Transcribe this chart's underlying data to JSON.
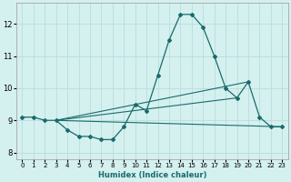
{
  "xlabel": "Humidex (Indice chaleur)",
  "ylabel": "",
  "background_color": "#d4f0ef",
  "grid_color": "#b8dede",
  "line_color": "#1a6b6b",
  "xlim": [
    -0.5,
    23.5
  ],
  "ylim": [
    7.8,
    12.65
  ],
  "yticks": [
    8,
    9,
    10,
    11,
    12
  ],
  "xticks": [
    0,
    1,
    2,
    3,
    4,
    5,
    6,
    7,
    8,
    9,
    10,
    11,
    12,
    13,
    14,
    15,
    16,
    17,
    18,
    19,
    20,
    21,
    22,
    23
  ],
  "line1_x": [
    0,
    1,
    2,
    3,
    4,
    5,
    6,
    7,
    8,
    9,
    10,
    11,
    12,
    13,
    14,
    15,
    16,
    17,
    18,
    19,
    20,
    21,
    22,
    23
  ],
  "line1_y": [
    9.1,
    9.1,
    9.0,
    9.0,
    8.7,
    8.5,
    8.5,
    8.4,
    8.4,
    8.8,
    9.5,
    9.3,
    10.4,
    11.5,
    12.3,
    12.3,
    11.9,
    11.0,
    10.0,
    9.7,
    10.2,
    9.1,
    8.8,
    8.8
  ],
  "line2_x": [
    3,
    23
  ],
  "line2_y": [
    9.0,
    8.8
  ],
  "line3_x": [
    3,
    20
  ],
  "line3_y": [
    9.0,
    10.2
  ],
  "line4_x": [
    3,
    19
  ],
  "line4_y": [
    9.0,
    9.7
  ]
}
